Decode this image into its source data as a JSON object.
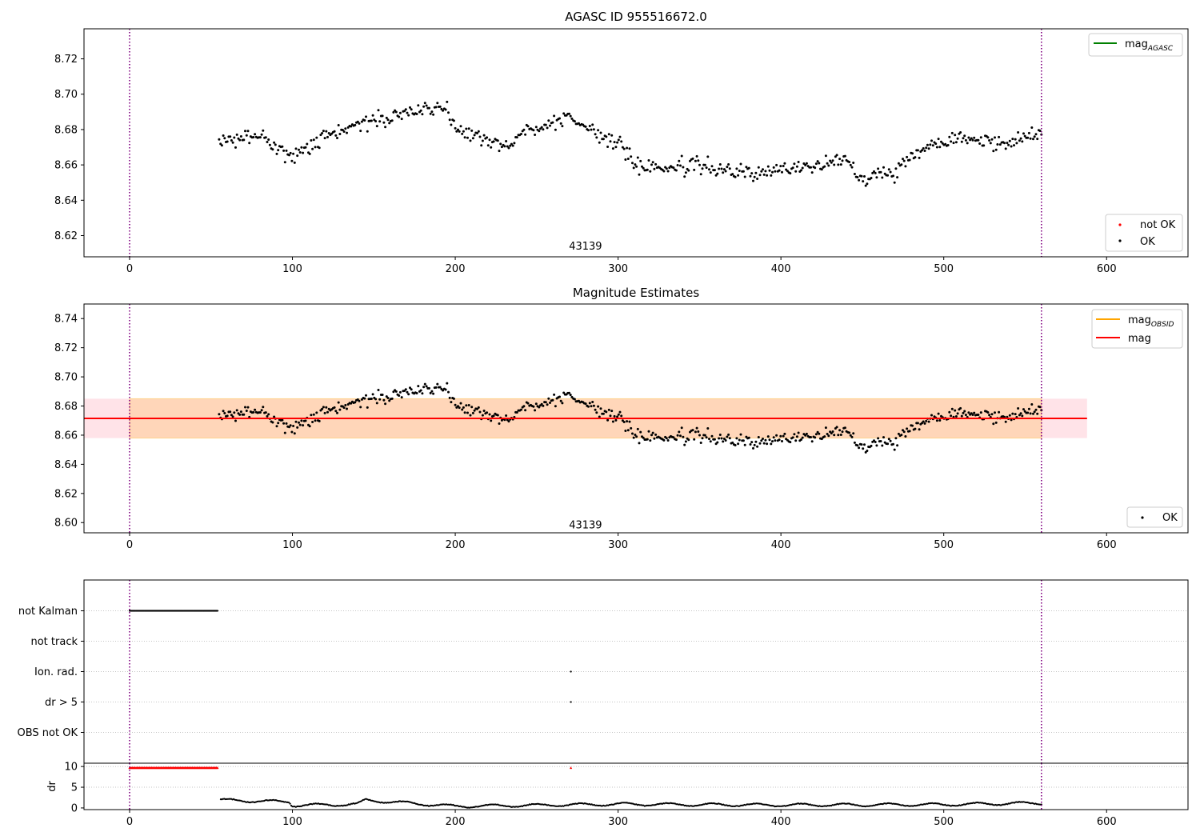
{
  "chart_data": [
    {
      "type": "scatter",
      "title": "AGASC ID 955516672.0",
      "xlim": [
        -28,
        650
      ],
      "ylim": [
        8.608,
        8.737
      ],
      "xticks": [
        0,
        100,
        200,
        300,
        400,
        500,
        600
      ],
      "yticks": [
        8.62,
        8.64,
        8.66,
        8.68,
        8.7,
        8.72
      ],
      "ytick_decimals": 2,
      "vlines": [
        0,
        560
      ],
      "annotation": {
        "text": "43139",
        "x": 280,
        "y": 8.612
      },
      "legend_line": {
        "entries": [
          {
            "label": "mag",
            "sub": "AGASC",
            "color": "#008000"
          }
        ],
        "placement": "upper right"
      },
      "legend_points": {
        "entries": [
          {
            "label": "not OK",
            "color": "#ff0000"
          },
          {
            "label": "OK",
            "color": "#000000"
          }
        ],
        "placement": "lower right"
      },
      "series": [
        {
          "name": "OK",
          "color": "#000000",
          "x_start": 55,
          "x_end": 560,
          "count": 600,
          "profile": {
            "x": [
              55,
              80,
              100,
              120,
              140,
              160,
              175,
              185,
              195,
              205,
              215,
              230,
              245,
              260,
              270,
              280,
              290,
              300,
              310,
              330,
              350,
              370,
              390,
              410,
              430,
              440,
              450,
              460,
              470,
              480,
              490,
              510,
              530,
              545,
              560
            ],
            "y": [
              8.672,
              8.677,
              8.665,
              8.676,
              8.683,
              8.687,
              8.691,
              8.692,
              8.69,
              8.678,
              8.676,
              8.67,
              8.68,
              8.684,
              8.687,
              8.681,
              8.676,
              8.673,
              8.66,
              8.658,
              8.66,
              8.656,
              8.655,
              8.659,
              8.66,
              8.665,
              8.652,
              8.656,
              8.655,
              8.666,
              8.67,
              8.677,
              8.672,
              8.674,
              8.678
            ]
          },
          "scatter": 0.0065
        }
      ]
    },
    {
      "type": "scatter",
      "title": "Magnitude Estimates",
      "xlim": [
        -28,
        650
      ],
      "ylim": [
        8.593,
        8.75
      ],
      "xticks": [
        0,
        100,
        200,
        300,
        400,
        500,
        600
      ],
      "yticks": [
        8.6,
        8.62,
        8.64,
        8.66,
        8.68,
        8.7,
        8.72,
        8.74
      ],
      "ytick_decimals": 2,
      "vlines": [
        0,
        560
      ],
      "annotation": {
        "text": "43139",
        "x": 280,
        "y": 8.596
      },
      "mag": {
        "value": 8.6715,
        "band": [
          8.658,
          8.685
        ],
        "x_end": 588
      },
      "legend_line": {
        "entries": [
          {
            "label": "mag",
            "sub": "OBSID",
            "color": "#ffa500"
          },
          {
            "label": "mag",
            "sub": "",
            "color": "#ff0000"
          }
        ],
        "placement": "upper right"
      },
      "legend_points": {
        "entries": [
          {
            "label": "OK",
            "color": "#000000"
          }
        ],
        "placement": "lower right"
      },
      "series": [
        {
          "name": "OK",
          "color": "#000000",
          "x_start": 55,
          "x_end": 560,
          "count": 600,
          "profile": {
            "x": [
              55,
              80,
              100,
              120,
              140,
              160,
              175,
              185,
              195,
              205,
              215,
              230,
              245,
              260,
              270,
              280,
              290,
              300,
              310,
              330,
              350,
              370,
              390,
              410,
              430,
              440,
              450,
              460,
              470,
              480,
              490,
              510,
              530,
              545,
              560
            ],
            "y": [
              8.672,
              8.677,
              8.665,
              8.676,
              8.683,
              8.687,
              8.691,
              8.692,
              8.69,
              8.678,
              8.676,
              8.67,
              8.68,
              8.684,
              8.687,
              8.681,
              8.676,
              8.673,
              8.66,
              8.658,
              8.66,
              8.656,
              8.655,
              8.659,
              8.66,
              8.665,
              8.652,
              8.656,
              8.655,
              8.666,
              8.67,
              8.677,
              8.672,
              8.674,
              8.678
            ]
          },
          "scatter": 0.0065
        }
      ]
    },
    {
      "type": "scatter",
      "title": "",
      "xlim": [
        -28,
        650
      ],
      "flags": [
        "not Kalman",
        "not track",
        "Ion. rad.",
        "dr > 5",
        "OBS not OK"
      ],
      "flag_points": [
        {
          "flag": "not Kalman",
          "x_start": 0,
          "x_end": 54,
          "count": 110
        },
        {
          "flag": "Ion. rad.",
          "x_start": 271,
          "x_end": 271,
          "count": 1
        },
        {
          "flag": "dr > 5",
          "x_start": 271,
          "x_end": 271,
          "count": 1
        }
      ],
      "vlines": [
        0,
        560
      ]
    },
    {
      "type": "scatter",
      "title": "",
      "xlim": [
        -28,
        650
      ],
      "ylim": [
        -0.4,
        10.8
      ],
      "ylabel": "dr",
      "yticks": [
        0,
        5,
        10
      ],
      "xticks": [
        0,
        100,
        200,
        300,
        400,
        500,
        600
      ],
      "vlines": [
        0,
        560
      ],
      "series": [
        {
          "name": "dr > 5",
          "color": "#ff0000",
          "marker": "triangle",
          "segments": [
            {
              "x_start": 0,
              "x_end": 54,
              "count": 110,
              "y": 9.7
            },
            {
              "x_start": 271,
              "x_end": 271,
              "count": 1,
              "y": 9.7
            }
          ]
        },
        {
          "name": "dr",
          "color": "#000000",
          "x_start": 56,
          "x_end": 560,
          "count": 700,
          "profile": {
            "x": [
              56,
              75,
              98,
              100,
              140,
              145,
              200,
              300,
              400,
              500,
              560
            ],
            "y": [
              1.9,
              1.7,
              1.5,
              0.6,
              0.9,
              1.9,
              0.4,
              0.9,
              0.7,
              0.8,
              1.2
            ]
          },
          "wave": 0.55
        }
      ]
    }
  ]
}
